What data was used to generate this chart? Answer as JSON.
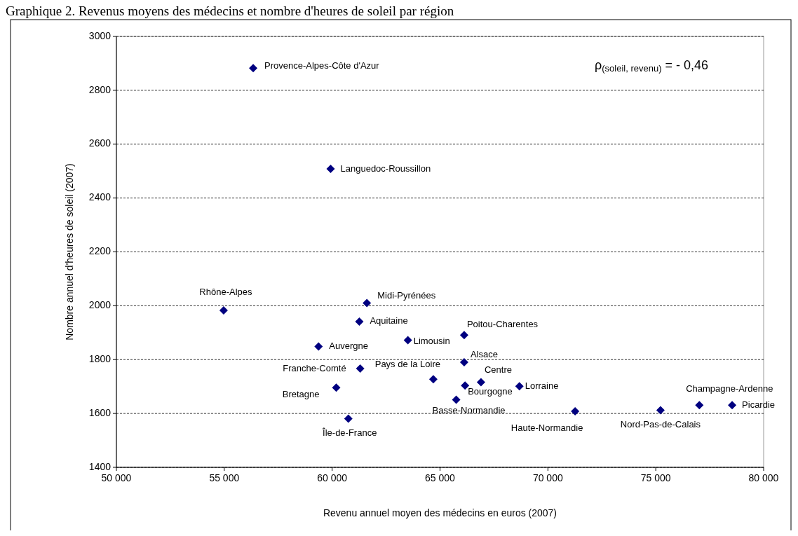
{
  "chart_data": {
    "type": "scatter",
    "title": "Graphique 2. Revenus moyens des médecins et nombre d'heures de soleil par région",
    "xlabel": "Revenu annuel moyen des médecins en euros (2007)",
    "ylabel": "Nombre annuel d'heures de soleil (2007)",
    "x": [
      56340,
      59930,
      54970,
      61610,
      61260,
      59370,
      63510,
      66120,
      66120,
      61300,
      64690,
      66900,
      66160,
      68680,
      60190,
      65750,
      60750,
      71260,
      75220,
      77020,
      78540
    ],
    "series": [
      {
        "color": "#000080",
        "values": [
          2882,
          2508,
          1983,
          2010,
          1941,
          1849,
          1872,
          1891,
          1790,
          1767,
          1727,
          1716,
          1704,
          1701,
          1696,
          1651,
          1581,
          1608,
          1612,
          1631,
          1631
        ]
      }
    ],
    "annotations": [
      {
        "text": "Provence-Alpes-Côte d'Azur",
        "x": 56340,
        "y": 2882
      },
      {
        "text": "Languedoc-Roussillon",
        "x": 59930,
        "y": 2508
      },
      {
        "text": "Rhône-Alpes",
        "x": 54970,
        "y": 1983
      },
      {
        "text": "Midi-Pyrénées",
        "x": 61610,
        "y": 2010
      },
      {
        "text": "Aquitaine",
        "x": 61260,
        "y": 1941
      },
      {
        "text": "Auvergne",
        "x": 59370,
        "y": 1849
      },
      {
        "text": "Limousin",
        "x": 63510,
        "y": 1872
      },
      {
        "text": "Poitou-Charentes",
        "x": 66120,
        "y": 1891
      },
      {
        "text": "Alsace",
        "x": 66120,
        "y": 1790
      },
      {
        "text": "Franche-Comté",
        "x": 61300,
        "y": 1767
      },
      {
        "text": "Pays de la Loire",
        "x": 64690,
        "y": 1727
      },
      {
        "text": "Centre",
        "x": 66900,
        "y": 1716
      },
      {
        "text": "Bourgogne",
        "x": 66160,
        "y": 1704
      },
      {
        "text": "Lorraine",
        "x": 68680,
        "y": 1701
      },
      {
        "text": "Bretagne",
        "x": 60190,
        "y": 1696
      },
      {
        "text": "Basse-Normandie",
        "x": 65750,
        "y": 1651
      },
      {
        "text": "Île-de-France",
        "x": 60750,
        "y": 1581
      },
      {
        "text": "Haute-Normandie",
        "x": 71260,
        "y": 1608
      },
      {
        "text": "Nord-Pas-de-Calais",
        "x": 75220,
        "y": 1612
      },
      {
        "text": "Champagne-Ardenne",
        "x": 77020,
        "y": 1631
      },
      {
        "text": "Picardie",
        "x": 78540,
        "y": 1631
      },
      "ρ$_{(soleil, revenu)}$ = - 0,46"
    ],
    "xlim": [
      50000,
      80000
    ],
    "xticks": [
      {
        "value": 50000,
        "label": "50 000"
      },
      {
        "value": 55000,
        "label": "55 000"
      },
      {
        "value": 60000,
        "label": "60 000"
      },
      {
        "value": 65000,
        "label": "65 000"
      },
      {
        "value": 70000,
        "label": "70 000"
      },
      {
        "value": 75000,
        "label": "75 000"
      },
      {
        "value": 80000,
        "label": "80 000"
      }
    ],
    "ylim": [
      1400,
      3000
    ],
    "yticks": [
      1400,
      1600,
      1800,
      2000,
      2200,
      2400,
      2600,
      2800,
      3000
    ],
    "grid": "y",
    "marker": "diamond"
  }
}
